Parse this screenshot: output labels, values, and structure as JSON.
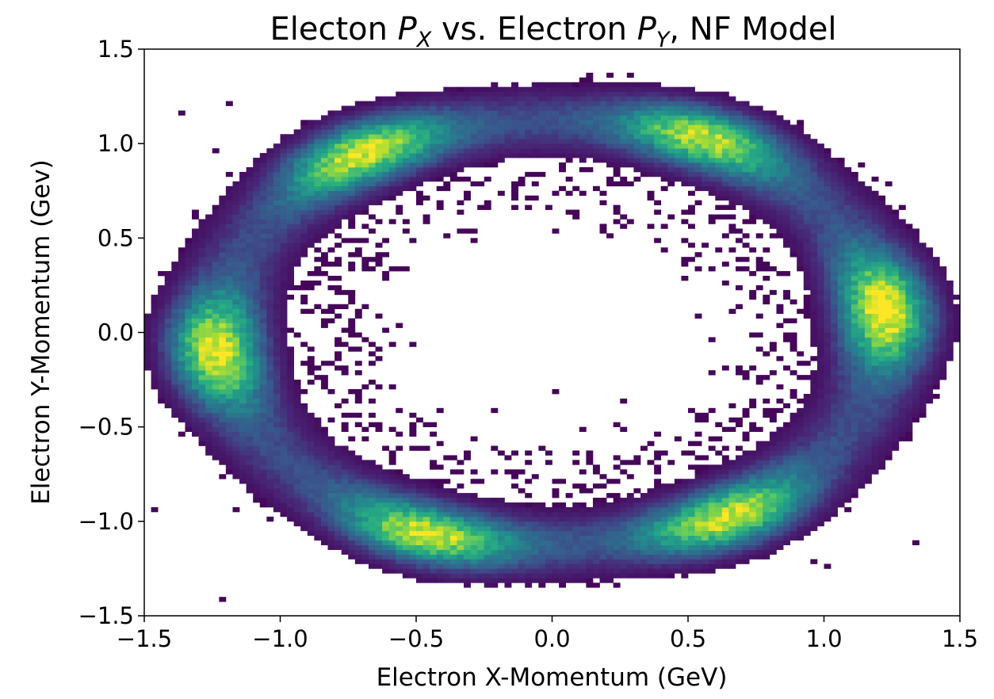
{
  "chart_data": {
    "type": "heatmap",
    "title": {
      "prefix": "Electon ",
      "var1": "P",
      "sub1": "X",
      "middle": " vs. Electron ",
      "var2": "P",
      "sub2": "Y",
      "suffix": ", NF Model"
    },
    "xlabel": "Electron X-Momentum (GeV)",
    "ylabel": "Electron Y-Momentum (Gev)",
    "xlim": [
      -1.5,
      1.5
    ],
    "ylim": [
      -1.5,
      1.5
    ],
    "xticks": [
      {
        "value": -1.5,
        "label": "−1.5"
      },
      {
        "value": -1.0,
        "label": "−1.0"
      },
      {
        "value": -0.5,
        "label": "−0.5"
      },
      {
        "value": 0.0,
        "label": "0.0"
      },
      {
        "value": 0.5,
        "label": "0.5"
      },
      {
        "value": 1.0,
        "label": "1.0"
      },
      {
        "value": 1.5,
        "label": "1.5"
      }
    ],
    "yticks": [
      {
        "value": -1.5,
        "label": "−1.5"
      },
      {
        "value": -1.0,
        "label": "−1.0"
      },
      {
        "value": -0.5,
        "label": "−0.5"
      },
      {
        "value": 0.0,
        "label": "0.0"
      },
      {
        "value": 0.5,
        "label": "0.5"
      },
      {
        "value": 1.0,
        "label": "1.0"
      },
      {
        "value": 1.5,
        "label": "1.5"
      }
    ],
    "grid": false,
    "colormap": "viridis",
    "bins": {
      "x": 120,
      "y": 120
    },
    "distribution": {
      "shape": "elliptical ring",
      "ring_radius_x": 1.33,
      "ring_radius_y": 1.22,
      "inner_void_radius_x": 0.78,
      "inner_void_radius_y": 0.68,
      "y_cutoff": [
        -1.42,
        1.4
      ],
      "hotspots": [
        {
          "x": -1.3,
          "y": -0.1
        },
        {
          "x": -0.75,
          "y": 1.02
        },
        {
          "x": 0.62,
          "y": 1.12
        },
        {
          "x": 1.25,
          "y": 0.12
        },
        {
          "x": 0.7,
          "y": -1.05
        },
        {
          "x": -0.5,
          "y": -1.15
        }
      ]
    },
    "colors": {
      "low": "#440154",
      "mid": "#21918c",
      "high": "#fde725",
      "axis": "#000000",
      "background": "#ffffff"
    }
  }
}
